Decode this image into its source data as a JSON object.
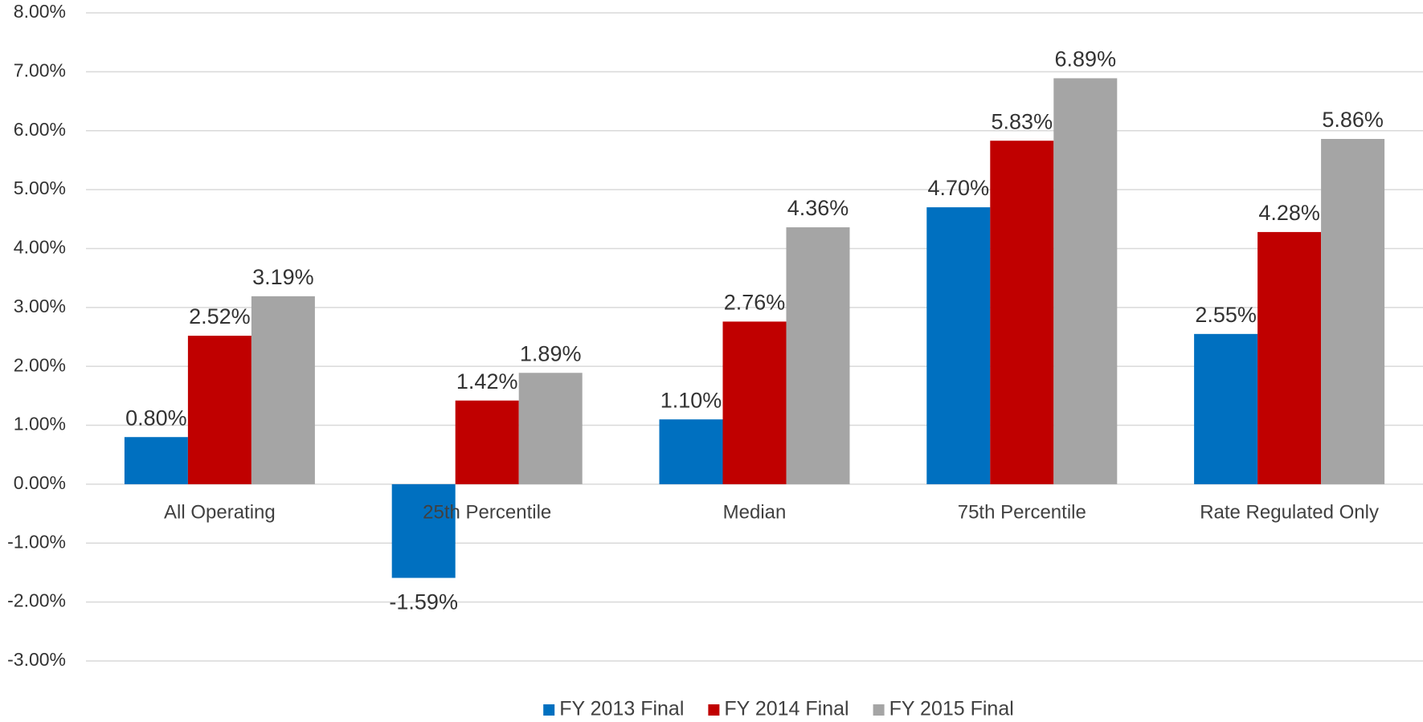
{
  "chart_data": {
    "type": "bar",
    "categories": [
      "All Operating",
      "25th Percentile",
      "Median",
      "75th Percentile",
      "Rate Regulated Only"
    ],
    "series": [
      {
        "name": "FY 2013 Final",
        "color": "#0070c0",
        "values": [
          0.8,
          -1.59,
          1.1,
          4.7,
          2.55
        ],
        "value_labels": [
          "0.80%",
          "-1.59%",
          "1.10%",
          "4.70%",
          "2.55%"
        ]
      },
      {
        "name": "FY 2014 Final",
        "color": "#c00000",
        "values": [
          2.52,
          1.42,
          2.76,
          5.83,
          4.28
        ],
        "value_labels": [
          "2.52%",
          "1.42%",
          "2.76%",
          "5.83%",
          "4.28%"
        ]
      },
      {
        "name": "FY 2015 Final",
        "color": "#a5a5a5",
        "values": [
          3.19,
          1.89,
          4.36,
          6.89,
          5.86
        ],
        "value_labels": [
          "3.19%",
          "1.89%",
          "4.36%",
          "6.89%",
          "5.86%"
        ]
      }
    ],
    "ylim": [
      -3,
      8
    ],
    "yticks": [
      {
        "value": -3,
        "label": "-3.00%"
      },
      {
        "value": -2,
        "label": "-2.00%"
      },
      {
        "value": -1,
        "label": "-1.00%"
      },
      {
        "value": 0,
        "label": "0.00%"
      },
      {
        "value": 1,
        "label": "1.00%"
      },
      {
        "value": 2,
        "label": "2.00%"
      },
      {
        "value": 3,
        "label": "3.00%"
      },
      {
        "value": 4,
        "label": "4.00%"
      },
      {
        "value": 5,
        "label": "5.00%"
      },
      {
        "value": 6,
        "label": "6.00%"
      },
      {
        "value": 7,
        "label": "7.00%"
      },
      {
        "value": 8,
        "label": "8.00%"
      }
    ],
    "grid": true,
    "legend": "bottom"
  }
}
